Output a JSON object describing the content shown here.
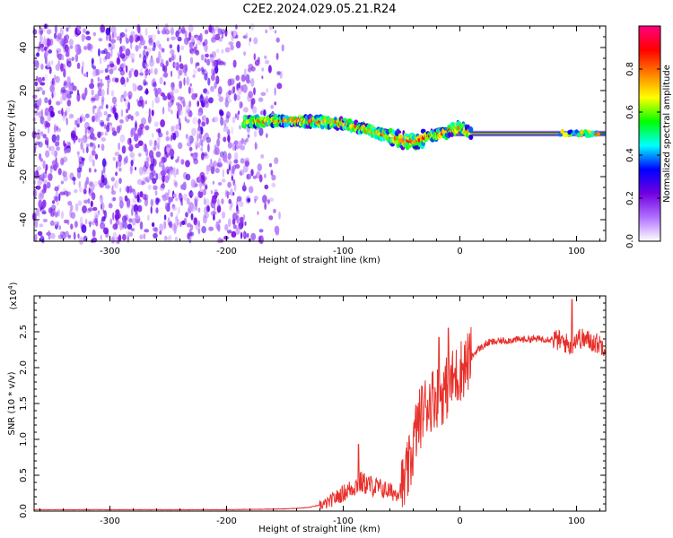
{
  "figure": {
    "title": "C2E2.2024.029.05.21.R24"
  },
  "chart_data": [
    {
      "type": "heatmap",
      "panel": "top",
      "xlabel": "Height of straight line (km)",
      "ylabel": "Frequency (Hz)",
      "xlim": [
        -365,
        125
      ],
      "ylim": [
        -50,
        50
      ],
      "xticks": [
        -300,
        -200,
        -100,
        0,
        100
      ],
      "yticks": [
        -40,
        -20,
        0,
        20,
        40
      ],
      "grid": false,
      "colorbar": {
        "label": "Normalized spectral amplitude",
        "range": [
          0,
          1
        ],
        "ticks": [
          0.0,
          0.2,
          0.4,
          0.6,
          0.8
        ],
        "tick_labels": [
          "0.0",
          "0.2",
          "0.4",
          "0.6",
          "0.8"
        ],
        "colormap": "rainbow",
        "colors": [
          "#ffffff",
          "#b070ff",
          "#7000e0",
          "#0000ff",
          "#00ffff",
          "#00ff00",
          "#ffff00",
          "#ff8000",
          "#ff0000",
          "#ff0080"
        ]
      },
      "features": [
        {
          "region": "noise",
          "x_range": [
            -365,
            -145
          ],
          "y_range": [
            -50,
            50
          ],
          "amplitude": 0.12
        },
        {
          "region": "signal_ridge",
          "x_range": [
            -185,
            10
          ],
          "y_center": [
            6,
            6,
            5,
            3,
            -2,
            -5,
            -3,
            0,
            3
          ],
          "amplitude": 0.75
        },
        {
          "region": "carrier_line",
          "x_range": [
            -10,
            125
          ],
          "y": 0,
          "amplitude": 0.95
        }
      ],
      "ridge_points": {
        "x": [
          -185,
          -160,
          -140,
          -120,
          -100,
          -80,
          -60,
          -45,
          -35,
          -25,
          -15,
          -5,
          0,
          10,
          50,
          100,
          125
        ],
        "y": [
          5.5,
          6,
          6,
          5.5,
          4.5,
          2,
          -1.5,
          -3.5,
          -3,
          -1,
          0,
          2,
          3,
          0,
          0,
          0,
          0
        ]
      }
    },
    {
      "type": "line",
      "panel": "bottom",
      "xlabel": "Height of straight line (km)",
      "ylabel": "SNR (10 * v/v)",
      "y_multiplier_label": "(x10",
      "y_multiplier_exp": "4",
      "xlim": [
        -365,
        125
      ],
      "ylim": [
        0,
        3.0
      ],
      "xticks": [
        -300,
        -200,
        -100,
        0,
        100
      ],
      "yticks": [
        0.0,
        0.5,
        1.0,
        1.5,
        2.0,
        2.5
      ],
      "ytick_labels": [
        "0.0",
        "0.5",
        "1.0",
        "1.5",
        "2.0",
        "2.5"
      ],
      "series": [
        {
          "color": "#e8302a",
          "x": [
            -365,
            -300,
            -200,
            -150,
            -130,
            -115,
            -105,
            -95,
            -85,
            -75,
            -65,
            -55,
            -48,
            -42,
            -38,
            -32,
            -28,
            -22,
            -18,
            -12,
            -8,
            -2,
            2,
            8,
            15,
            25,
            40,
            60,
            80,
            90,
            95,
            100,
            110,
            125
          ],
          "y": [
            0.02,
            0.02,
            0.02,
            0.03,
            0.05,
            0.1,
            0.2,
            0.3,
            0.4,
            0.35,
            0.3,
            0.25,
            0.35,
            0.7,
            1.1,
            1.4,
            1.5,
            1.6,
            1.6,
            1.7,
            1.8,
            1.9,
            2.0,
            2.1,
            2.25,
            2.35,
            2.38,
            2.4,
            2.4,
            2.35,
            2.3,
            2.42,
            2.38,
            2.3
          ]
        }
      ],
      "peaks": [
        {
          "x": -87,
          "y": 0.93
        },
        {
          "x": -18,
          "y": 2.42
        },
        {
          "x": -10,
          "y": 2.55
        },
        {
          "x": 96,
          "y": 2.95
        }
      ]
    }
  ]
}
